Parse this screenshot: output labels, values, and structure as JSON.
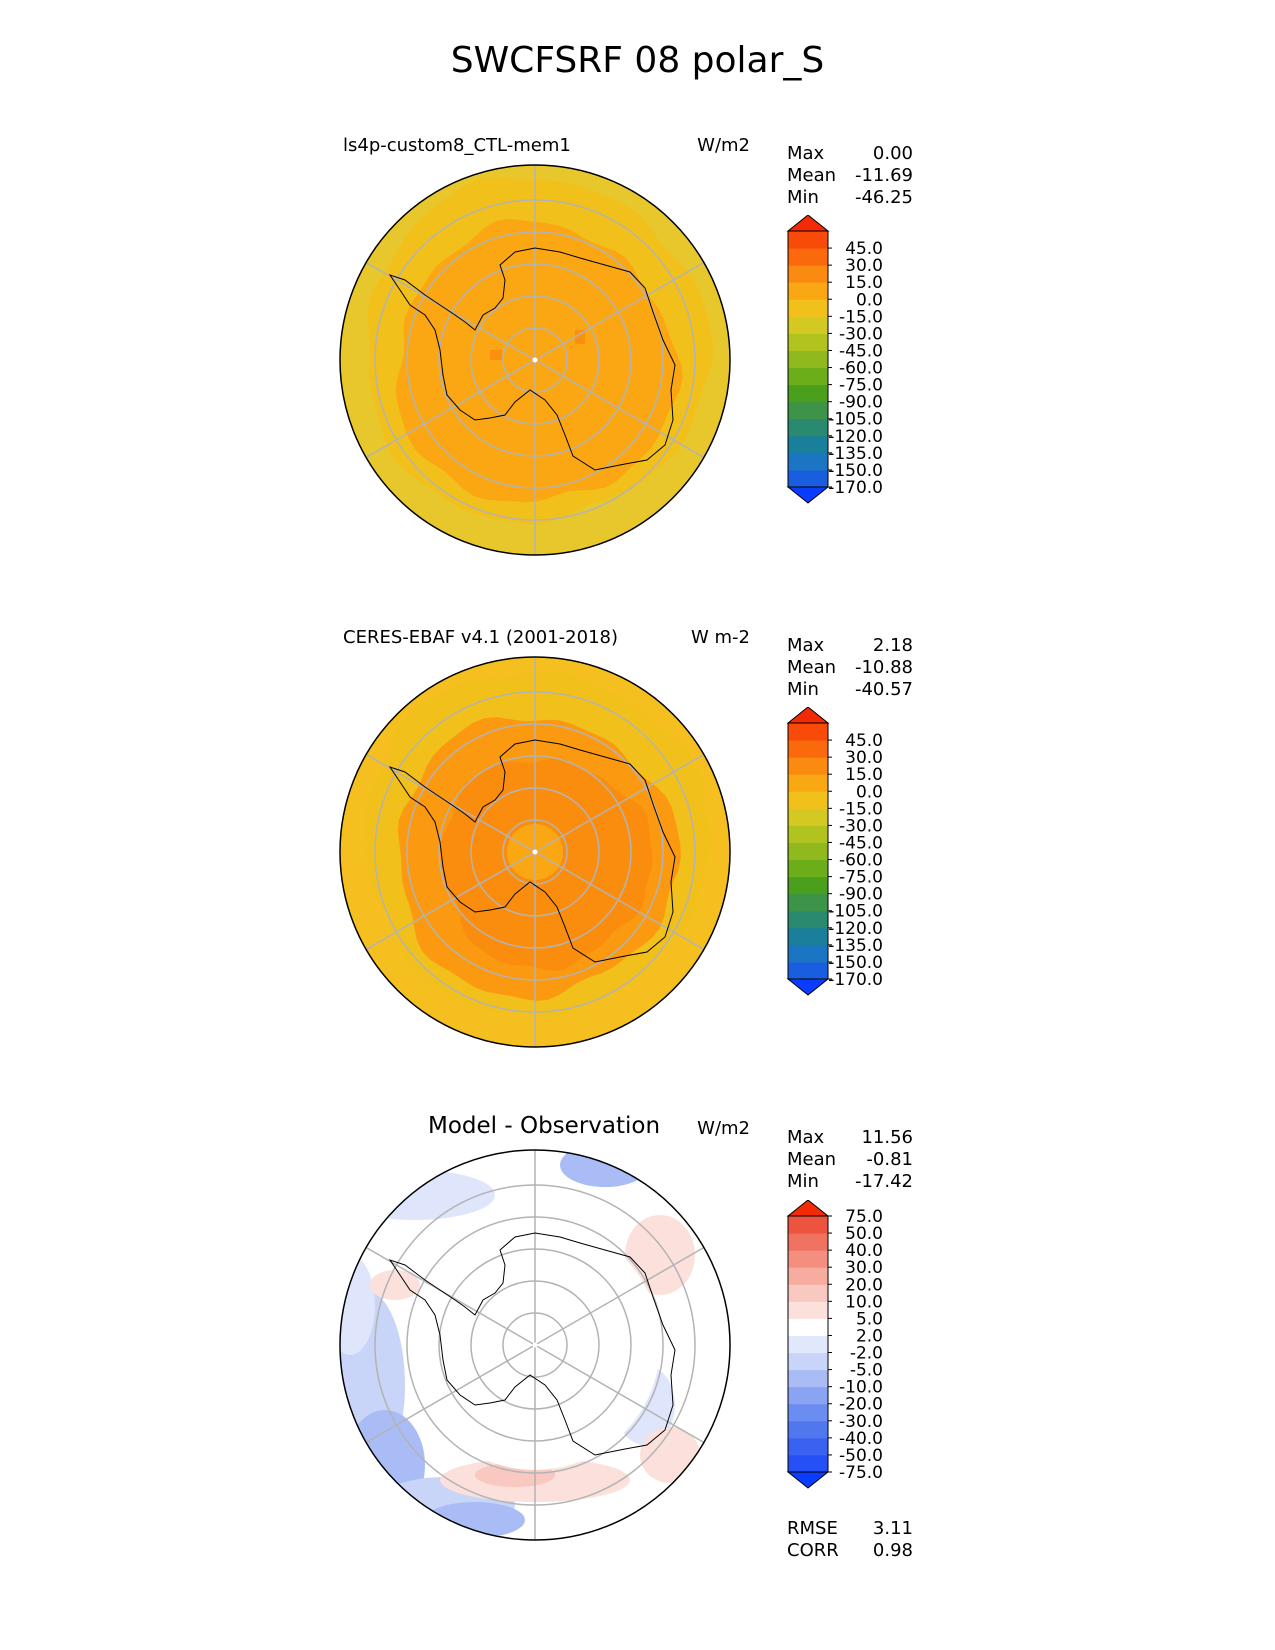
{
  "figure_title": "SWCFSRF 08 polar_S",
  "panels": [
    {
      "title": "ls4p-custom8_CTL-mem1",
      "units": "W/m2",
      "stats": [
        {
          "label": "Max",
          "value": "0.00"
        },
        {
          "label": "Mean",
          "value": "-11.69"
        },
        {
          "label": "Min",
          "value": "-46.25"
        }
      ]
    },
    {
      "title": "CERES-EBAF v4.1 (2001-2018)",
      "units": "W m-2",
      "stats": [
        {
          "label": "Max",
          "value": "2.18"
        },
        {
          "label": "Mean",
          "value": "-10.88"
        },
        {
          "label": "Min",
          "value": "-40.57"
        }
      ]
    },
    {
      "title": "Model - Observation",
      "units": "W/m2",
      "stats": [
        {
          "label": "Max",
          "value": "11.56"
        },
        {
          "label": "Mean",
          "value": "-0.81"
        },
        {
          "label": "Min",
          "value": "-17.42"
        }
      ],
      "metrics": [
        {
          "label": "RMSE",
          "value": "3.11"
        },
        {
          "label": "CORR",
          "value": "0.98"
        }
      ]
    }
  ],
  "chart_data": [
    {
      "type": "heatmap",
      "projection": "polar stereographic (south pole)",
      "title": "ls4p-custom8_CTL-mem1",
      "units": "W/m2",
      "colorbar": {
        "levels": [
          -170.0,
          -150.0,
          -135.0,
          -120.0,
          -105.0,
          -90.0,
          -75.0,
          -60.0,
          -45.0,
          -30.0,
          -15.0,
          0.0,
          15.0,
          30.0,
          45.0
        ],
        "tick_labels": [
          "-170.0",
          "-150.0",
          "-135.0",
          "-120.0",
          "-105.0",
          "-90.0",
          "-75.0",
          "-60.0",
          "-45.0",
          "-30.0",
          "-15.0",
          "0.0",
          "15.0",
          "30.0",
          "45.0"
        ],
        "colors": [
          "#0a3cff",
          "#1a5ee0",
          "#1b75c2",
          "#1a7f9a",
          "#2a8a70",
          "#3d9348",
          "#4aa01c",
          "#6cae1a",
          "#8fb91c",
          "#b1c31f",
          "#d3c922",
          "#f2c01b",
          "#f9a814",
          "#fa8a10",
          "#fa6a0c",
          "#f84a08",
          "#f22a05"
        ],
        "extend": "both"
      },
      "dominant_fill": "#fba714",
      "outer_ring_fill": "#e8c72c",
      "stats": {
        "max": 0.0,
        "mean": -11.69,
        "min": -46.25
      }
    },
    {
      "type": "heatmap",
      "projection": "polar stereographic (south pole)",
      "title": "CERES-EBAF v4.1 (2001-2018)",
      "units": "W m-2",
      "colorbar": {
        "levels": [
          -170.0,
          -150.0,
          -135.0,
          -120.0,
          -105.0,
          -90.0,
          -75.0,
          -60.0,
          -45.0,
          -30.0,
          -15.0,
          0.0,
          15.0,
          30.0,
          45.0
        ],
        "tick_labels": [
          "-170.0",
          "-150.0",
          "-135.0",
          "-120.0",
          "-105.0",
          "-90.0",
          "-75.0",
          "-60.0",
          "-45.0",
          "-30.0",
          "-15.0",
          "0.0",
          "15.0",
          "30.0",
          "45.0"
        ],
        "colors": [
          "#0a3cff",
          "#1a5ee0",
          "#1b75c2",
          "#1a7f9a",
          "#2a8a70",
          "#3d9348",
          "#4aa01c",
          "#6cae1a",
          "#8fb91c",
          "#b1c31f",
          "#d3c922",
          "#f2c01b",
          "#f9a814",
          "#fa8a10",
          "#fa6a0c",
          "#f84a08",
          "#f22a05"
        ],
        "extend": "both"
      },
      "dominant_fill": "#fb9a10",
      "outer_ring_fill": "#f4bf1f",
      "stats": {
        "max": 2.18,
        "mean": -10.88,
        "min": -40.57
      }
    },
    {
      "type": "heatmap",
      "projection": "polar stereographic (south pole)",
      "title": "Model - Observation",
      "units": "W/m2",
      "colorbar": {
        "levels": [
          -75.0,
          -50.0,
          -40.0,
          -30.0,
          -20.0,
          -10.0,
          -5.0,
          -2.0,
          2.0,
          5.0,
          10.0,
          20.0,
          30.0,
          40.0,
          50.0,
          75.0
        ],
        "tick_labels": [
          "-75.0",
          "-50.0",
          "-40.0",
          "-30.0",
          "-20.0",
          "-10.0",
          "-5.0",
          "-2.0",
          "2.0",
          "5.0",
          "10.0",
          "20.0",
          "30.0",
          "40.0",
          "50.0",
          "75.0"
        ],
        "colors": [
          "#0a3cff",
          "#2550f5",
          "#3a62f0",
          "#5077ee",
          "#6b8cf0",
          "#8aa3f2",
          "#a9bcf5",
          "#c8d5f8",
          "#e2e8fb",
          "#ffffff",
          "#fbe0dc",
          "#f9c8c0",
          "#f7aca0",
          "#f48f80",
          "#f07260",
          "#ec5440",
          "#f22a05"
        ],
        "extend": "both"
      },
      "dominant_fill": "#ffffff",
      "stats": {
        "max": 11.56,
        "mean": -0.81,
        "min": -17.42
      },
      "metrics": {
        "rmse": 3.11,
        "corr": 0.98
      }
    }
  ]
}
